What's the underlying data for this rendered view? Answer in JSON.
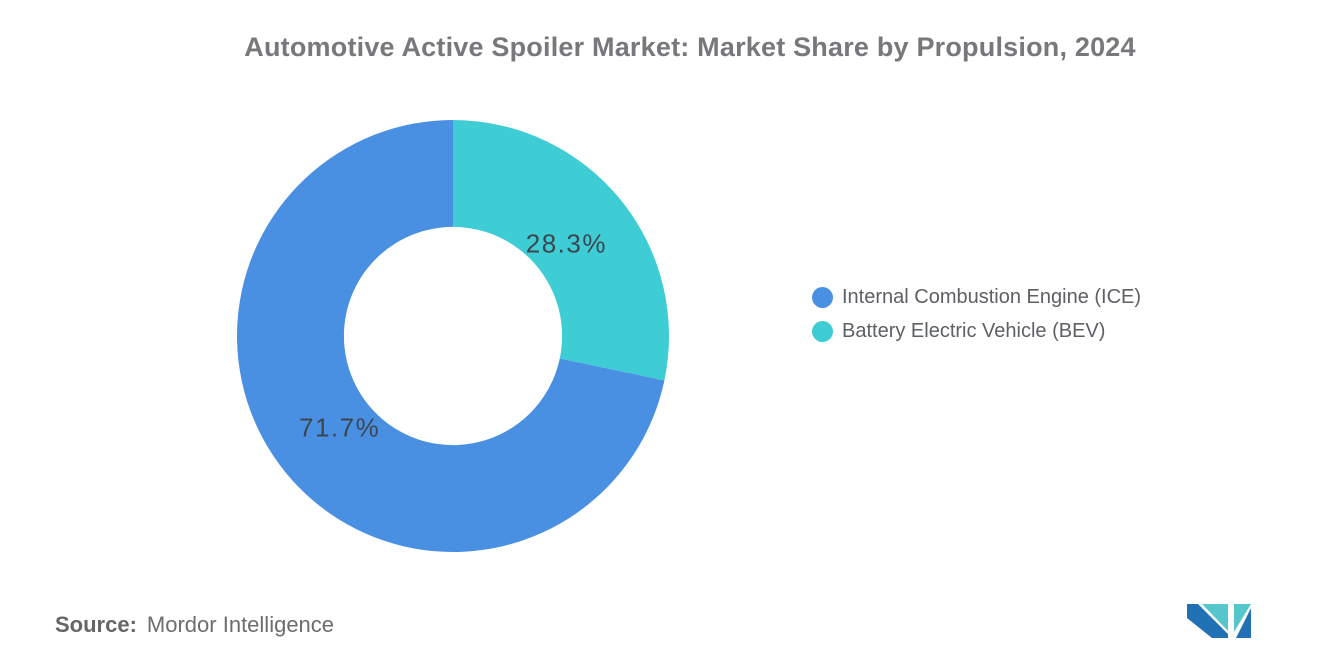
{
  "chart_data": {
    "type": "pie",
    "subtype": "donut",
    "title": "Automotive Active Spoiler Market: Market Share by Propulsion, 2024",
    "units": "%",
    "direction": "clockwise",
    "start_angle_deg": 0,
    "inner_radius_ratio": 0.505,
    "label_color": "#3D4650",
    "slices": [
      {
        "label": "Battery Electric Vehicle (BEV)",
        "value": 28.3,
        "display_label": "28.3%",
        "color": "#3ECDD4"
      },
      {
        "label": "Internal Combustion Engine (ICE)",
        "value": 71.7,
        "display_label": "71.7%",
        "color": "#4A90E2"
      }
    ],
    "legend": {
      "position": "right",
      "items": [
        {
          "label": "Internal Combustion Engine (ICE)",
          "color": "#4A90E2"
        },
        {
          "label": "Battery Electric Vehicle (BEV)",
          "color": "#3ECDD4"
        }
      ]
    }
  },
  "footer": {
    "source_prefix": "Source:",
    "source_name": "Mordor Intelligence"
  },
  "brand": {
    "logo_blue": "#2171B5",
    "logo_teal": "#55C6CB"
  }
}
